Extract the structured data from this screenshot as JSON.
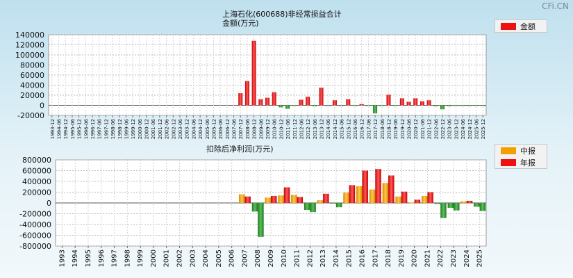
{
  "watermark": "CFi.CN",
  "chart_data": [
    {
      "type": "bar",
      "title": "上海石化(600688)非经常损益合计",
      "subtitle": "金额(万元)",
      "legend": [
        {
          "label": "金额",
          "color": "#ee1111"
        }
      ],
      "ylim": [
        -20000,
        140000
      ],
      "yticks": [
        -20000,
        0,
        20000,
        40000,
        60000,
        80000,
        100000,
        120000,
        140000
      ],
      "categories": [
        "1993-12",
        "1994-06",
        "1994-12",
        "1995-06",
        "1995-12",
        "1996-06",
        "1996-12",
        "1997-06",
        "1997-12",
        "1998-06",
        "1998-12",
        "1999-06",
        "1999-12",
        "2000-06",
        "2000-12",
        "2001-06",
        "2001-12",
        "2002-06",
        "2002-12",
        "2003-06",
        "2003-12",
        "2004-06",
        "2004-12",
        "2005-06",
        "2005-12",
        "2006-06",
        "2006-12",
        "2007-06",
        "2007-12",
        "2008-06",
        "2008-12",
        "2009-06",
        "2009-12",
        "2010-06",
        "2010-12",
        "2011-06",
        "2011-12",
        "2012-06",
        "2012-12",
        "2013-06",
        "2013-12",
        "2014-06",
        "2014-12",
        "2015-06",
        "2015-12",
        "2016-06",
        "2016-12",
        "2017-06",
        "2017-12",
        "2018-06",
        "2018-12",
        "2019-06",
        "2019-12",
        "2020-06",
        "2020-12",
        "2021-06",
        "2021-12",
        "2022-06",
        "2022-12",
        "2023-06",
        "2023-12",
        "2024-06",
        "2024-12",
        "2025-06",
        "2025-12"
      ],
      "series": [
        {
          "name": "金额",
          "values": [
            0,
            0,
            0,
            0,
            0,
            0,
            0,
            0,
            0,
            0,
            0,
            0,
            0,
            0,
            0,
            0,
            0,
            0,
            0,
            0,
            0,
            0,
            0,
            0,
            0,
            0,
            0,
            0,
            24000,
            48000,
            128000,
            12000,
            15000,
            26000,
            -4000,
            -7000,
            -1000,
            11000,
            17000,
            -2000,
            35000,
            -1000,
            10000,
            -1000,
            12000,
            -1000,
            2500,
            -1000,
            -16000,
            -500,
            21000,
            -1000,
            14000,
            7000,
            14000,
            8000,
            10000,
            -2000,
            -8000,
            -2000,
            -1000,
            -1000,
            -1500,
            -1000,
            -1500
          ]
        }
      ]
    },
    {
      "type": "bar",
      "title": "扣除后净利润(万元)",
      "legend": [
        {
          "label": "中报",
          "color": "#f0a000"
        },
        {
          "label": "年报",
          "color": "#ee1111"
        }
      ],
      "ylim": [
        -800000,
        800000
      ],
      "yticks": [
        -800000,
        -600000,
        -400000,
        -200000,
        0,
        200000,
        400000,
        600000,
        800000
      ],
      "categories": [
        "1993",
        "1994",
        "1995",
        "1996",
        "1997",
        "1998",
        "1999",
        "2000",
        "2001",
        "2002",
        "2003",
        "2004",
        "2005",
        "2006",
        "2007",
        "2008",
        "2009",
        "2010",
        "2011",
        "2012",
        "2013",
        "2014",
        "2015",
        "2016",
        "2017",
        "2018",
        "2019",
        "2020",
        "2021",
        "2022",
        "2023",
        "2024",
        "2025"
      ],
      "series": [
        {
          "name": "中报",
          "values": [
            null,
            null,
            null,
            null,
            null,
            null,
            null,
            null,
            null,
            null,
            null,
            null,
            null,
            null,
            160000,
            -160000,
            100000,
            140000,
            150000,
            -130000,
            50000,
            -5000,
            190000,
            310000,
            250000,
            370000,
            120000,
            10000,
            130000,
            -20000,
            -90000,
            30000,
            -70000
          ]
        },
        {
          "name": "年报",
          "values": [
            null,
            null,
            null,
            null,
            null,
            null,
            null,
            null,
            null,
            null,
            null,
            null,
            null,
            null,
            120000,
            -630000,
            130000,
            290000,
            110000,
            -170000,
            170000,
            -80000,
            330000,
            600000,
            630000,
            510000,
            210000,
            60000,
            200000,
            -280000,
            -140000,
            40000,
            -150000
          ]
        }
      ]
    }
  ]
}
